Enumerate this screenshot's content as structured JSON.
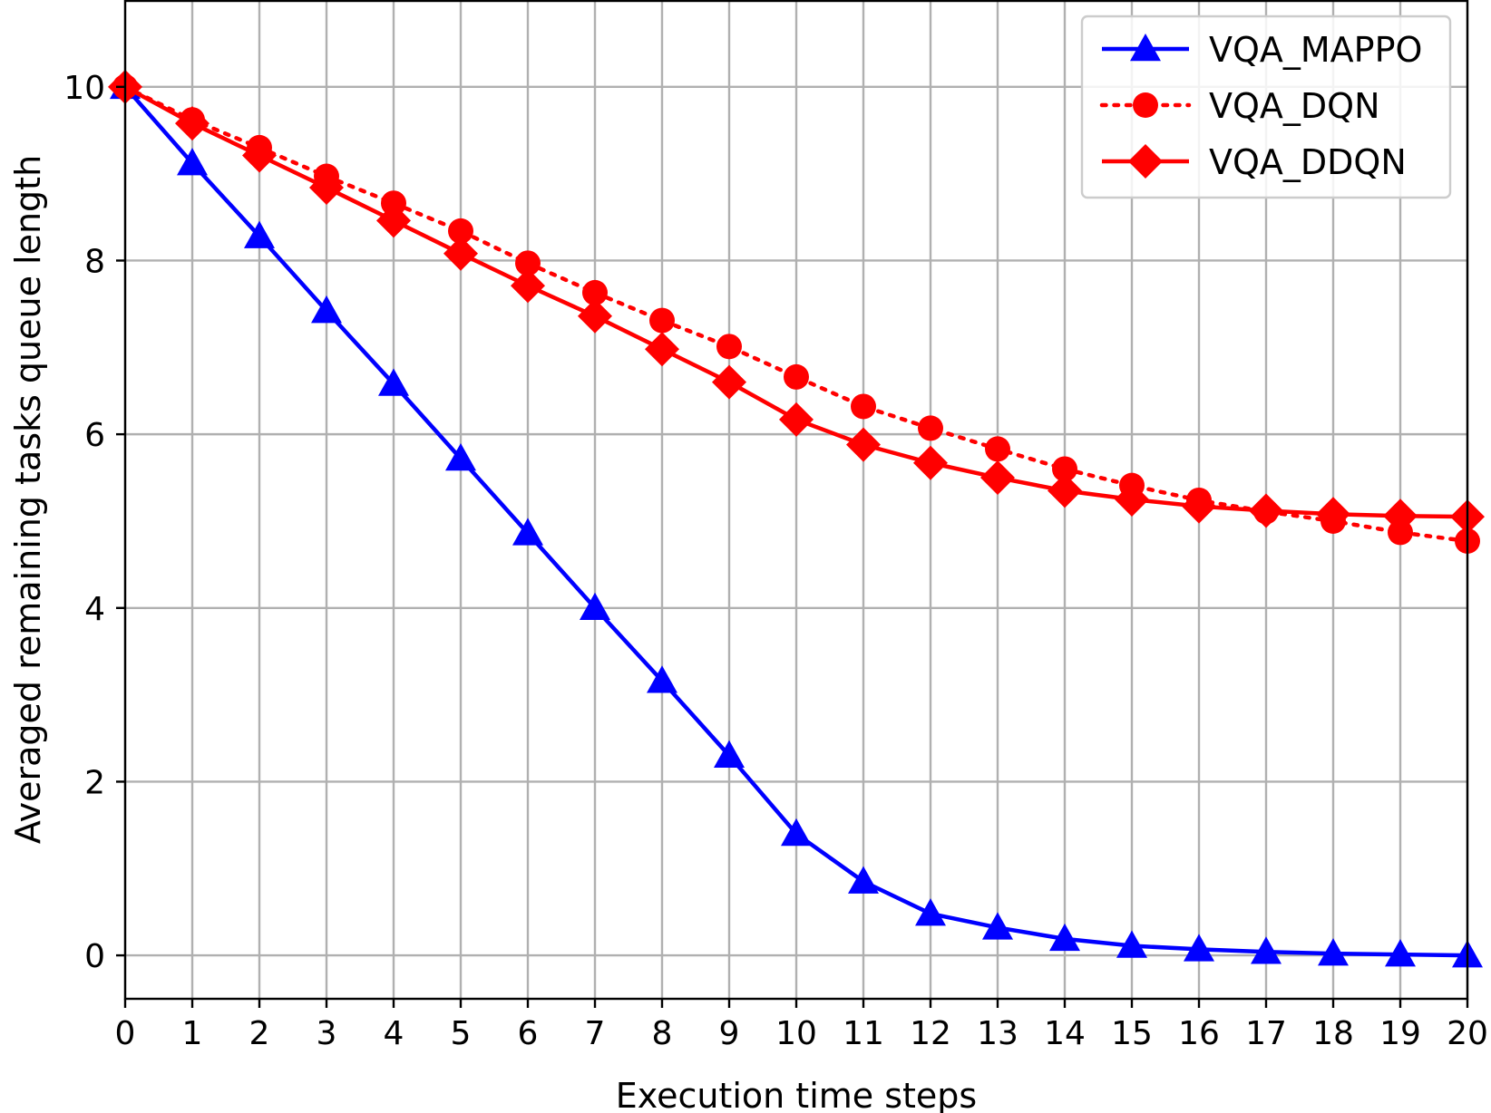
{
  "chart_data": {
    "type": "line",
    "title": "",
    "xlabel": "Execution time steps",
    "ylabel": "Averaged remaining tasks queue length",
    "x": [
      0,
      1,
      2,
      3,
      4,
      5,
      6,
      7,
      8,
      9,
      10,
      11,
      12,
      13,
      14,
      15,
      16,
      17,
      18,
      19,
      20
    ],
    "xlim": [
      0,
      20
    ],
    "ylim": [
      -0.5,
      11
    ],
    "xticks": [
      0,
      1,
      2,
      3,
      4,
      5,
      6,
      7,
      8,
      9,
      10,
      11,
      12,
      13,
      14,
      15,
      16,
      17,
      18,
      19,
      20
    ],
    "yticks": [
      0,
      2,
      4,
      6,
      8,
      10
    ],
    "grid": true,
    "legend_position": "top-right",
    "series": [
      {
        "name": "VQA_MAPPO",
        "color": "#0000ff",
        "marker": "triangle",
        "linestyle": "solid",
        "values": [
          10,
          9.12,
          8.28,
          7.42,
          6.58,
          5.72,
          4.86,
          4.0,
          3.16,
          2.3,
          1.4,
          0.85,
          0.48,
          0.32,
          0.19,
          0.11,
          0.07,
          0.04,
          0.02,
          0.01,
          0.0
        ]
      },
      {
        "name": "VQA_DQN",
        "color": "#ff0000",
        "marker": "circle",
        "linestyle": "dotted",
        "values": [
          10,
          9.62,
          9.3,
          8.97,
          8.66,
          8.34,
          7.97,
          7.63,
          7.31,
          7.01,
          6.66,
          6.32,
          6.07,
          5.83,
          5.6,
          5.41,
          5.24,
          5.11,
          5.0,
          4.87,
          4.77
        ]
      },
      {
        "name": "VQA_DDQN",
        "color": "#ff0000",
        "marker": "diamond",
        "linestyle": "solid",
        "values": [
          10,
          9.58,
          9.21,
          8.84,
          8.46,
          8.08,
          7.71,
          7.36,
          6.98,
          6.6,
          6.17,
          5.88,
          5.67,
          5.5,
          5.35,
          5.25,
          5.17,
          5.12,
          5.08,
          5.06,
          5.05
        ]
      }
    ]
  }
}
